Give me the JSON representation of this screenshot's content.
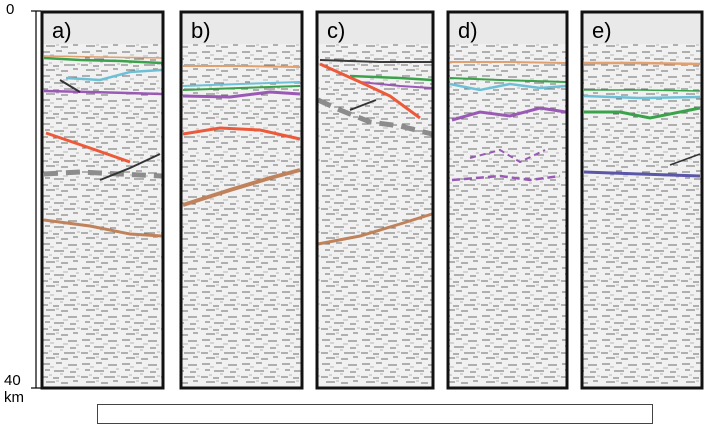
{
  "axis": {
    "top_label": "0",
    "bottom_label": "40",
    "unit": "km"
  },
  "panels": [
    {
      "label": "a)"
    },
    {
      "label": "b)"
    },
    {
      "label": "c)"
    },
    {
      "label": "d)"
    },
    {
      "label": "e)"
    }
  ],
  "colors": {
    "panel_border": "#111111",
    "header_band": "#e9e9e9",
    "noise_background": "#f2f2f2",
    "green_reflector": "#3aa24a",
    "cyan_reflector": "#6ec0d6",
    "purple_reflector": "#9b59b6",
    "orange_reflector": "#ec5a3a",
    "brown_reflector": "#c0825a",
    "blue_reflector": "#5a56a8",
    "grey_dashed": "#8c8c8c",
    "tan_reflector": "#e0a070"
  }
}
